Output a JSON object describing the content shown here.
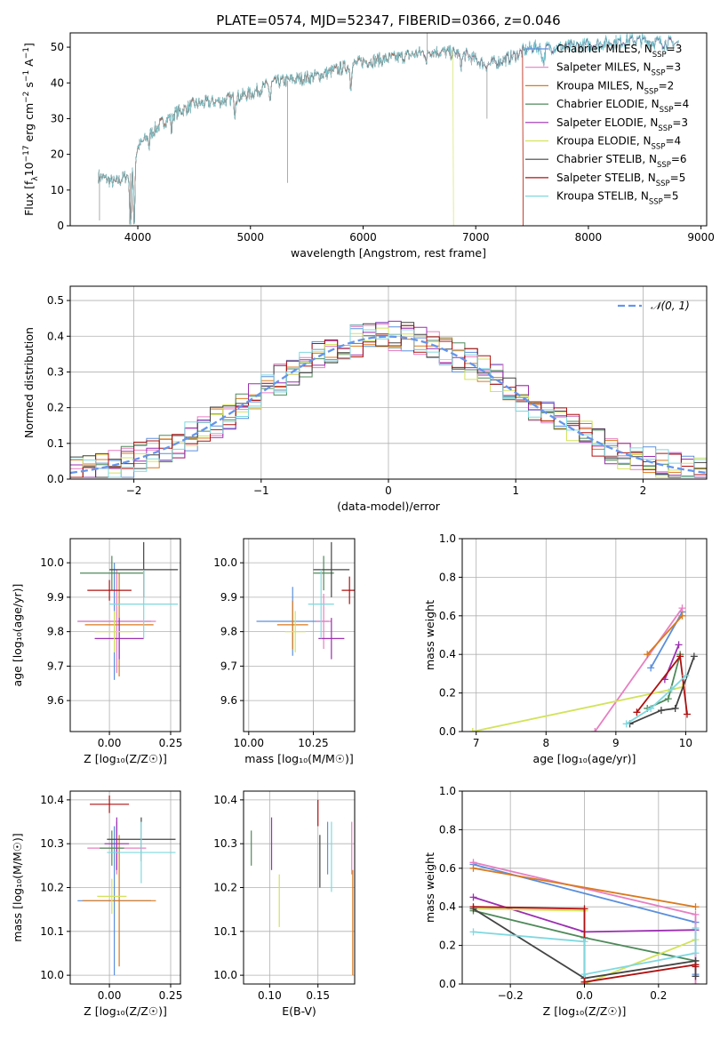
{
  "colors": {
    "Chabrier MILES": "#5b8fdc",
    "Salpeter MILES": "#e77fc2",
    "Kroupa MILES": "#d97a1e",
    "Chabrier ELODIE": "#4f8a5a",
    "Salpeter ELODIE": "#9b2fb0",
    "Kroupa ELODIE": "#d2e35a",
    "Chabrier STELIB": "#444444",
    "Salpeter STELIB": "#b01010",
    "Kroupa STELIB": "#7fd8df",
    "normal": "#6495ed"
  },
  "chart_data": [
    {
      "id": "spectrum",
      "type": "line",
      "title": "PLATE=0574, MJD=52347, FIBERID=0366, z=0.046",
      "xlabel": "wavelength [Angstrom, rest frame]",
      "ylabel_parts": [
        "Flux [f",
        "λ",
        "10",
        "−17",
        " erg cm",
        "−2",
        " s",
        "−1",
        " A",
        "−1",
        "]"
      ],
      "xlim": [
        3400,
        9050
      ],
      "ylim": [
        0,
        54
      ],
      "xticks": [
        4000,
        5000,
        6000,
        7000,
        8000,
        9000
      ],
      "yticks": [
        0,
        10,
        20,
        30,
        40,
        50
      ],
      "grid": false,
      "legend_position": "top-right",
      "wavelength_range": [
        3650,
        8800
      ],
      "flux_anchor_x": [
        3650,
        3800,
        3950,
        4000,
        4150,
        4300,
        4500,
        4750,
        5000,
        5200,
        5400,
        5600,
        5800,
        6000,
        6300,
        6600,
        6900,
        7100,
        7300,
        7500,
        7800,
        8100,
        8400,
        8800
      ],
      "flux_anchor_y": [
        14,
        12,
        15,
        22,
        27,
        31,
        34,
        35,
        37,
        40,
        41,
        42,
        44,
        46,
        47,
        49,
        48,
        45,
        47,
        50,
        50,
        51,
        52,
        51
      ],
      "series": [
        {
          "name": "Chabrier MILES",
          "nssp": "3"
        },
        {
          "name": "Salpeter MILES",
          "nssp": "3"
        },
        {
          "name": "Kroupa MILES",
          "nssp": "2",
          "drop_at": 7420
        },
        {
          "name": "Chabrier ELODIE",
          "nssp": "4"
        },
        {
          "name": "Salpeter ELODIE",
          "nssp": "3"
        },
        {
          "name": "Kroupa ELODIE",
          "nssp": "4",
          "drop_at": 6800
        },
        {
          "name": "Chabrier STELIB",
          "nssp": "6"
        },
        {
          "name": "Salpeter STELIB",
          "nssp": "5",
          "drop_at": 7420
        },
        {
          "name": "Kroupa STELIB",
          "nssp": "5"
        }
      ]
    },
    {
      "id": "residuals",
      "type": "line",
      "xlabel": "(data-model)/error",
      "ylabel": "Normed distribution",
      "xlim": [
        -2.5,
        2.5
      ],
      "ylim": [
        0,
        0.54
      ],
      "xticks": [
        -2,
        -1,
        0,
        1,
        2
      ],
      "yticks": [
        0.0,
        0.1,
        0.2,
        0.3,
        0.4,
        0.5
      ],
      "grid": true,
      "legend_position": "top-right",
      "normal_label": "𝒩(0, 1)"
    },
    {
      "id": "age-vs-Z",
      "type": "scatter",
      "xlabel": "Z [log₁₀(Z/Z☉)]",
      "ylabel": "age  [log₁₀(age/yr)]",
      "xlim": [
        -0.16,
        0.29
      ],
      "ylim": [
        9.51,
        10.07
      ],
      "xticks": [
        0.0,
        0.25
      ],
      "yticks": [
        9.6,
        9.7,
        9.8,
        9.9,
        10.0
      ],
      "grid": true,
      "points": [
        {
          "series": "Chabrier MILES",
          "x": 0.02,
          "y": 9.83,
          "xerr": 0.15,
          "yerr": 0.17
        },
        {
          "series": "Salpeter MILES",
          "x": 0.03,
          "y": 9.83,
          "xerr": 0.16,
          "yerr": 0.15
        },
        {
          "series": "Kroupa MILES",
          "x": 0.04,
          "y": 9.82,
          "xerr": 0.14,
          "yerr": 0.15
        },
        {
          "series": "Chabrier ELODIE",
          "x": 0.01,
          "y": 9.97,
          "xerr": 0.13,
          "yerr": 0.05
        },
        {
          "series": "Salpeter ELODIE",
          "x": 0.04,
          "y": 9.78,
          "xerr": 0.1,
          "yerr": 0.06
        },
        {
          "series": "Kroupa ELODIE",
          "x": 0.02,
          "y": 9.8,
          "xerr": 0.08,
          "yerr": 0.06
        },
        {
          "series": "Chabrier STELIB",
          "x": 0.14,
          "y": 9.98,
          "xerr": 0.14,
          "yerr": 0.08
        },
        {
          "series": "Salpeter STELIB",
          "x": 0.0,
          "y": 9.92,
          "xerr": 0.09,
          "yerr": 0.03
        },
        {
          "series": "Kroupa STELIB",
          "x": 0.14,
          "y": 9.88,
          "xerr": 0.14,
          "yerr": 0.1
        }
      ]
    },
    {
      "id": "age-vs-mass",
      "type": "scatter",
      "xlabel": "mass [log₁₀(M/M☉)]",
      "ylabel": "",
      "xlim": [
        9.98,
        10.41
      ],
      "ylim": [
        9.51,
        10.07
      ],
      "xticks": [
        10.0,
        10.25
      ],
      "yticks": [
        9.6,
        9.7,
        9.8,
        9.9,
        10.0
      ],
      "grid": true,
      "points": [
        {
          "series": "Chabrier MILES",
          "x": 10.17,
          "y": 9.83,
          "xerr": 0.14,
          "yerr": 0.1
        },
        {
          "series": "Salpeter MILES",
          "x": 10.29,
          "y": 9.83,
          "xerr": 0.03,
          "yerr": 0.08
        },
        {
          "series": "Kroupa MILES",
          "x": 10.17,
          "y": 9.82,
          "xerr": 0.06,
          "yerr": 0.07
        },
        {
          "series": "Chabrier ELODIE",
          "x": 10.29,
          "y": 9.97,
          "xerr": 0.04,
          "yerr": 0.05
        },
        {
          "series": "Salpeter ELODIE",
          "x": 10.32,
          "y": 9.78,
          "xerr": 0.05,
          "yerr": 0.06
        },
        {
          "series": "Kroupa ELODIE",
          "x": 10.18,
          "y": 9.8,
          "xerr": 0.04,
          "yerr": 0.06
        },
        {
          "series": "Chabrier STELIB",
          "x": 10.32,
          "y": 9.98,
          "xerr": 0.07,
          "yerr": 0.08
        },
        {
          "series": "Salpeter STELIB",
          "x": 10.39,
          "y": 9.92,
          "xerr": 0.03,
          "yerr": 0.04
        },
        {
          "series": "Kroupa STELIB",
          "x": 10.28,
          "y": 9.88,
          "xerr": 0.05,
          "yerr": 0.1
        }
      ]
    },
    {
      "id": "weight-vs-age",
      "type": "line",
      "xlabel": "age  [log₁₀(age/yr)]",
      "ylabel": "mass weight",
      "xlim": [
        6.8,
        10.3
      ],
      "ylim": [
        0,
        1.0
      ],
      "xticks": [
        7,
        8,
        9,
        10
      ],
      "yticks": [
        0.0,
        0.2,
        0.4,
        0.6,
        0.8,
        1.0
      ],
      "grid": true,
      "series": [
        {
          "name": "Chabrier MILES",
          "x": [
            9.5,
            9.95
          ],
          "y": [
            0.33,
            0.62
          ]
        },
        {
          "name": "Salpeter MILES",
          "x": [
            8.7,
            9.95
          ],
          "y": [
            0.0,
            0.64
          ]
        },
        {
          "name": "Kroupa MILES",
          "x": [
            9.45,
            9.95
          ],
          "y": [
            0.4,
            0.6
          ]
        },
        {
          "name": "Chabrier ELODIE",
          "x": [
            9.45,
            9.75,
            9.92
          ],
          "y": [
            0.12,
            0.17,
            0.4
          ]
        },
        {
          "name": "Salpeter ELODIE",
          "x": [
            9.7,
            9.9
          ],
          "y": [
            0.27,
            0.45
          ]
        },
        {
          "name": "Kroupa ELODIE",
          "x": [
            6.95,
            9.95
          ],
          "y": [
            0.0,
            0.23
          ]
        },
        {
          "name": "Chabrier STELIB",
          "x": [
            9.2,
            9.65,
            9.85,
            10.12
          ],
          "y": [
            0.04,
            0.11,
            0.12,
            0.39
          ]
        },
        {
          "name": "Salpeter STELIB",
          "x": [
            9.3,
            9.92,
            10.02
          ],
          "y": [
            0.1,
            0.39,
            0.09
          ]
        },
        {
          "name": "Kroupa STELIB",
          "x": [
            9.15,
            9.5,
            9.8,
            10.0
          ],
          "y": [
            0.04,
            0.12,
            0.22,
            0.29
          ]
        }
      ]
    },
    {
      "id": "mass-vs-Z",
      "type": "scatter",
      "xlabel": "Z [log₁₀(Z/Z☉)]",
      "ylabel": "mass [log₁₀(M/M☉)]",
      "xlim": [
        -0.16,
        0.29
      ],
      "ylim": [
        9.98,
        10.42
      ],
      "xticks": [
        0.0,
        0.25
      ],
      "yticks": [
        10.0,
        10.1,
        10.2,
        10.3,
        10.4
      ],
      "grid": true,
      "points": [
        {
          "series": "Chabrier MILES",
          "x": 0.02,
          "y": 10.17,
          "xerr": 0.15,
          "yerr": 0.17
        },
        {
          "series": "Salpeter MILES",
          "x": 0.03,
          "y": 10.29,
          "xerr": 0.12,
          "yerr": 0.06
        },
        {
          "series": "Kroupa MILES",
          "x": 0.04,
          "y": 10.17,
          "xerr": 0.15,
          "yerr": 0.15
        },
        {
          "series": "Chabrier ELODIE",
          "x": 0.01,
          "y": 10.29,
          "xerr": 0.05,
          "yerr": 0.04
        },
        {
          "series": "Salpeter ELODIE",
          "x": 0.03,
          "y": 10.3,
          "xerr": 0.05,
          "yerr": 0.06
        },
        {
          "series": "Kroupa ELODIE",
          "x": 0.01,
          "y": 10.18,
          "xerr": 0.06,
          "yerr": 0.04
        },
        {
          "series": "Chabrier STELIB",
          "x": 0.13,
          "y": 10.31,
          "xerr": 0.14,
          "yerr": 0.05
        },
        {
          "series": "Salpeter STELIB",
          "x": 0.0,
          "y": 10.39,
          "xerr": 0.08,
          "yerr": 0.02
        },
        {
          "series": "Kroupa STELIB",
          "x": 0.13,
          "y": 10.28,
          "xerr": 0.14,
          "yerr": 0.07
        }
      ]
    },
    {
      "id": "mass-vs-ebv",
      "type": "scatter",
      "xlabel": "E(B-V)",
      "ylabel": "",
      "xlim": [
        0.073,
        0.188
      ],
      "ylim": [
        9.98,
        10.42
      ],
      "xticks": [
        0.1,
        0.15
      ],
      "yticks": [
        10.0,
        10.1,
        10.2,
        10.3,
        10.4
      ],
      "grid": true,
      "points": [
        {
          "series": "Chabrier MILES",
          "x": 0.16,
          "y": 10.29,
          "yerr": 0.06
        },
        {
          "series": "Salpeter MILES",
          "x": 0.185,
          "y": 10.29,
          "yerr": 0.06
        },
        {
          "series": "Kroupa MILES",
          "x": 0.186,
          "y": 10.12,
          "yerr": 0.12
        },
        {
          "series": "Chabrier ELODIE",
          "x": 0.081,
          "y": 10.29,
          "yerr": 0.04
        },
        {
          "series": "Salpeter ELODIE",
          "x": 0.102,
          "y": 10.3,
          "yerr": 0.06
        },
        {
          "series": "Kroupa ELODIE",
          "x": 0.11,
          "y": 10.17,
          "yerr": 0.06
        },
        {
          "series": "Chabrier STELIB",
          "x": 0.152,
          "y": 10.26,
          "yerr": 0.06
        },
        {
          "series": "Salpeter STELIB",
          "x": 0.15,
          "y": 10.37,
          "yerr": 0.03
        },
        {
          "series": "Kroupa STELIB",
          "x": 0.164,
          "y": 10.27,
          "yerr": 0.08
        }
      ]
    },
    {
      "id": "weight-vs-Z",
      "type": "line",
      "xlabel": "Z [log₁₀(Z/Z☉)]",
      "ylabel": "mass weight",
      "xlim": [
        -0.33,
        0.33
      ],
      "ylim": [
        0,
        1.0
      ],
      "xticks": [
        -0.2,
        0.0,
        0.2
      ],
      "yticks": [
        0.0,
        0.2,
        0.4,
        0.6,
        0.8,
        1.0
      ],
      "grid": true,
      "series": [
        {
          "name": "Chabrier MILES",
          "x": [
            -0.3,
            0.3,
            0.3
          ],
          "y": [
            0.62,
            0.32,
            0.05
          ]
        },
        {
          "name": "Salpeter MILES",
          "x": [
            -0.3,
            0.3,
            0.3
          ],
          "y": [
            0.63,
            0.36,
            0.0
          ]
        },
        {
          "name": "Kroupa MILES",
          "x": [
            -0.3,
            0.3
          ],
          "y": [
            0.6,
            0.4
          ]
        },
        {
          "name": "Chabrier ELODIE",
          "x": [
            -0.3,
            0.0,
            0.3
          ],
          "y": [
            0.38,
            0.24,
            0.12
          ]
        },
        {
          "name": "Salpeter ELODIE",
          "x": [
            -0.3,
            0.0,
            0.3
          ],
          "y": [
            0.45,
            0.27,
            0.28
          ]
        },
        {
          "name": "Kroupa ELODIE",
          "x": [
            -0.3,
            0.0,
            0.0,
            0.3
          ],
          "y": [
            0.39,
            0.38,
            0.0,
            0.23
          ]
        },
        {
          "name": "Chabrier STELIB",
          "x": [
            -0.3,
            0.0,
            0.3,
            0.3
          ],
          "y": [
            0.39,
            0.03,
            0.12,
            0.04
          ]
        },
        {
          "name": "Salpeter STELIB",
          "x": [
            -0.3,
            0.0,
            0.0,
            0.3,
            0.3
          ],
          "y": [
            0.4,
            0.39,
            0.01,
            0.1,
            0.09
          ]
        },
        {
          "name": "Kroupa STELIB",
          "x": [
            -0.3,
            0.0,
            0.0,
            0.3,
            0.3
          ],
          "y": [
            0.27,
            0.22,
            0.05,
            0.16,
            0.29
          ]
        }
      ]
    }
  ]
}
